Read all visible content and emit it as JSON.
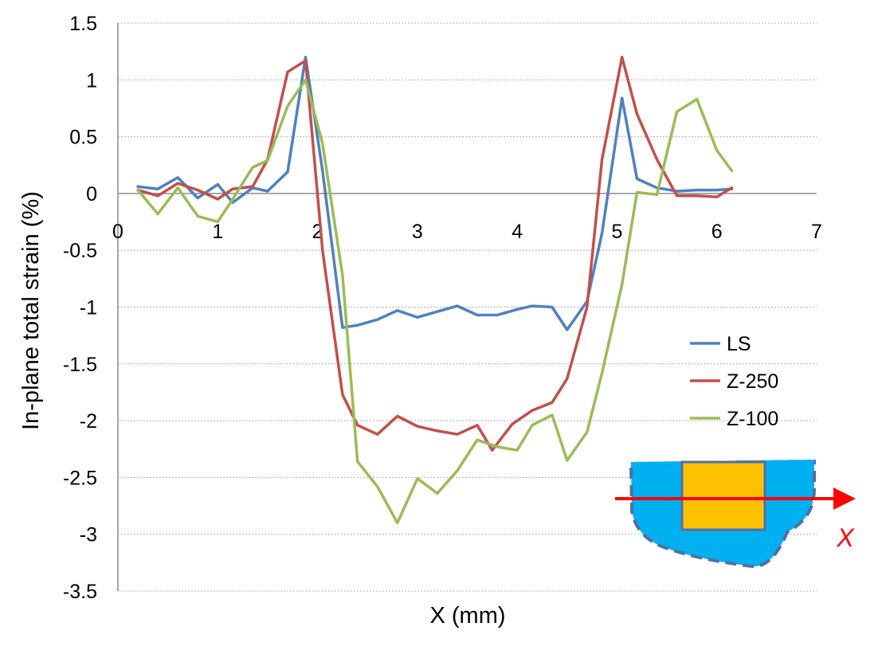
{
  "chart_data": {
    "type": "line",
    "title": "",
    "xlabel": "X (mm)",
    "ylabel": "In-plane total strain (%)",
    "xlim": [
      0,
      7
    ],
    "ylim": [
      -3.5,
      1.5
    ],
    "xticks": [
      "0",
      "1",
      "2",
      "3",
      "4",
      "5",
      "6",
      "7"
    ],
    "yticks": [
      "1.5",
      "1",
      "0.5",
      "0",
      "-0.5",
      "-1",
      "-1.5",
      "-2",
      "-2.5",
      "-3",
      "-3.5"
    ],
    "grid": "horizontal",
    "legend_position": "right",
    "series": [
      {
        "name": "LS",
        "color": "#4f81bd",
        "x": [
          0.2,
          0.4,
          0.6,
          0.8,
          1.0,
          1.15,
          1.35,
          1.5,
          1.7,
          1.88,
          2.05,
          2.25,
          2.4,
          2.6,
          2.8,
          3.0,
          3.2,
          3.4,
          3.6,
          3.8,
          4.0,
          4.15,
          4.35,
          4.5,
          4.7,
          4.85,
          5.05,
          5.2,
          5.4,
          5.6,
          5.8,
          6.0,
          6.15
        ],
        "y": [
          0.06,
          0.04,
          0.14,
          -0.04,
          0.08,
          -0.08,
          0.05,
          0.02,
          0.19,
          1.2,
          0.2,
          -1.18,
          -1.16,
          -1.11,
          -1.03,
          -1.09,
          -1.04,
          -0.99,
          -1.07,
          -1.07,
          -1.02,
          -0.99,
          -1.0,
          -1.2,
          -0.95,
          -0.35,
          0.84,
          0.13,
          0.05,
          0.02,
          0.03,
          0.03,
          0.04
        ]
      },
      {
        "name": "Z-250",
        "color": "#c0504d",
        "x": [
          0.2,
          0.4,
          0.6,
          0.8,
          1.0,
          1.15,
          1.35,
          1.5,
          1.7,
          1.88,
          2.05,
          2.25,
          2.4,
          2.6,
          2.8,
          3.0,
          3.2,
          3.4,
          3.6,
          3.75,
          3.95,
          4.15,
          4.35,
          4.5,
          4.7,
          4.85,
          5.05,
          5.2,
          5.4,
          5.6,
          5.8,
          6.0,
          6.15
        ],
        "y": [
          0.03,
          -0.02,
          0.09,
          0.03,
          -0.05,
          0.04,
          0.06,
          0.3,
          1.07,
          1.17,
          -0.5,
          -1.77,
          -2.04,
          -2.12,
          -1.96,
          -2.05,
          -2.09,
          -2.12,
          -2.04,
          -2.26,
          -2.03,
          -1.91,
          -1.84,
          -1.63,
          -1.0,
          0.3,
          1.2,
          0.7,
          0.3,
          -0.02,
          -0.02,
          -0.03,
          0.05
        ]
      },
      {
        "name": "Z-100",
        "color": "#9bbb59",
        "x": [
          0.2,
          0.4,
          0.6,
          0.8,
          1.0,
          1.15,
          1.35,
          1.5,
          1.7,
          1.88,
          2.05,
          2.25,
          2.4,
          2.6,
          2.8,
          3.0,
          3.2,
          3.4,
          3.6,
          3.8,
          4.0,
          4.15,
          4.35,
          4.5,
          4.7,
          4.85,
          5.05,
          5.2,
          5.4,
          5.6,
          5.8,
          6.0,
          6.15
        ],
        "y": [
          0.03,
          -0.18,
          0.05,
          -0.2,
          -0.25,
          -0.05,
          0.23,
          0.29,
          0.77,
          1.0,
          0.44,
          -0.72,
          -2.36,
          -2.58,
          -2.9,
          -2.51,
          -2.64,
          -2.44,
          -2.17,
          -2.23,
          -2.26,
          -2.04,
          -1.95,
          -2.35,
          -2.1,
          -1.58,
          -0.8,
          0.01,
          -0.01,
          0.72,
          0.83,
          0.38,
          0.2
        ]
      }
    ]
  },
  "inset": {
    "axis_label": "X",
    "colors": {
      "body": "#00b0f0",
      "core": "#ffc000",
      "arrow": "#ff0000",
      "outline": "#4f6fa8"
    }
  }
}
